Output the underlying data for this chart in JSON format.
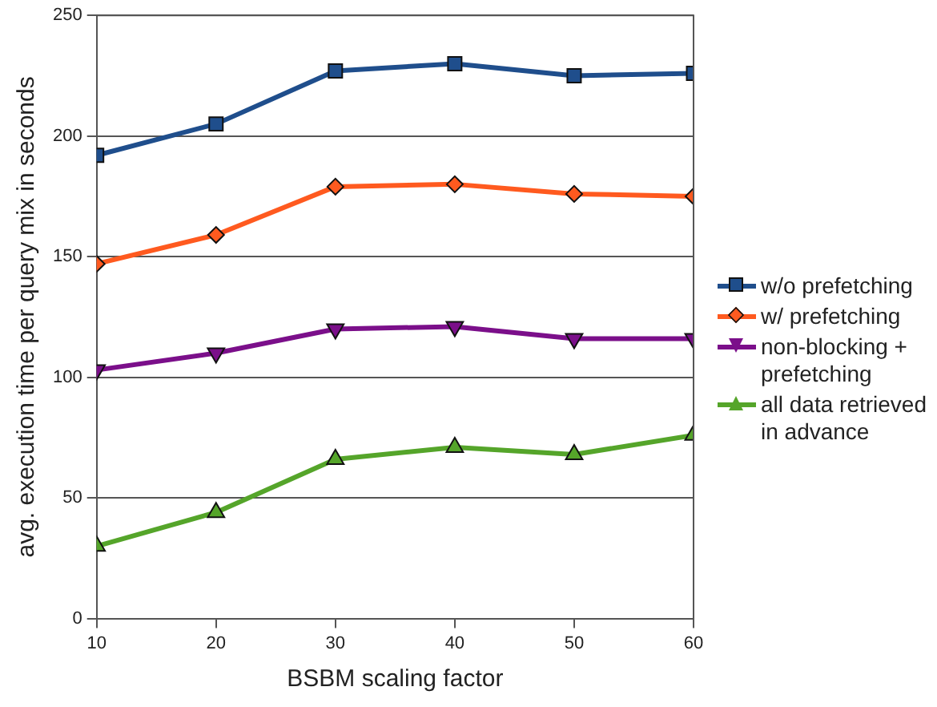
{
  "chart_data": {
    "type": "line",
    "xlabel": "BSBM scaling factor",
    "ylabel": "avg. execution time per query mix in seconds",
    "x": [
      10,
      20,
      30,
      40,
      50,
      60
    ],
    "xlim": [
      10,
      60
    ],
    "xticks": [
      10,
      20,
      30,
      40,
      50,
      60
    ],
    "ylim": [
      0,
      250
    ],
    "yticks": [
      0,
      50,
      100,
      150,
      200,
      250
    ],
    "grid": "y",
    "legend": "right",
    "series": [
      {
        "name": "w/o prefetching",
        "color": "#1f4e8c",
        "marker": "square",
        "values": [
          192,
          205,
          227,
          230,
          225,
          226
        ]
      },
      {
        "name": "w/ prefetching",
        "color": "#ff5a1f",
        "marker": "diamond",
        "values": [
          147,
          159,
          179,
          180,
          176,
          175
        ]
      },
      {
        "name": "non-blocking + prefetching",
        "color": "#7b0f8a",
        "marker": "triangle-down",
        "values": [
          103,
          110,
          120,
          121,
          116,
          116
        ]
      },
      {
        "name": "all data retrieved in advance",
        "color": "#55a52a",
        "marker": "triangle",
        "values": [
          30,
          44,
          66,
          71,
          68,
          76
        ]
      }
    ]
  }
}
